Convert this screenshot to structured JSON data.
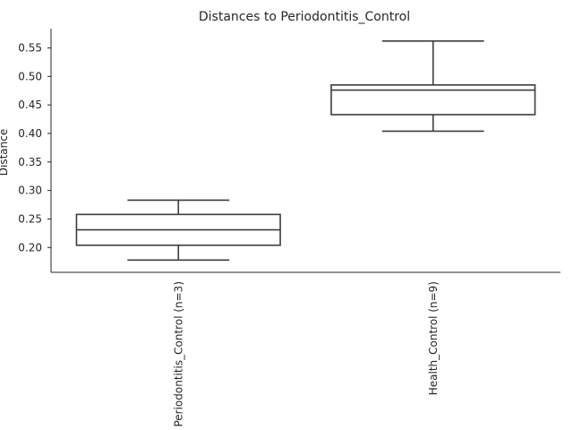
{
  "chart_data": {
    "type": "box",
    "title": "Distances to Periodontitis_Control",
    "xlabel": "",
    "ylabel": "Distance",
    "categories": [
      "Periodontitis_Control (n=3)",
      "Health_Control (n=9)"
    ],
    "boxes": [
      {
        "whislo": 0.178,
        "q1": 0.204,
        "med": 0.231,
        "q3": 0.258,
        "whishi": 0.283
      },
      {
        "whislo": 0.404,
        "q1": 0.433,
        "med": 0.476,
        "q3": 0.485,
        "whishi": 0.562
      }
    ],
    "yticks": [
      0.2,
      0.25,
      0.3,
      0.35,
      0.4,
      0.45,
      0.5,
      0.55
    ],
    "ytick_labels": [
      "0.20",
      "0.25",
      "0.30",
      "0.35",
      "0.40",
      "0.45",
      "0.50",
      "0.55"
    ],
    "ylim": [
      0.1565,
      0.5837
    ],
    "grid": false,
    "legend": "none",
    "colors": {
      "box_edge": "#3d3d3d",
      "box_fill": "#ffffff",
      "text": "#262626",
      "spine": "#262626"
    }
  }
}
